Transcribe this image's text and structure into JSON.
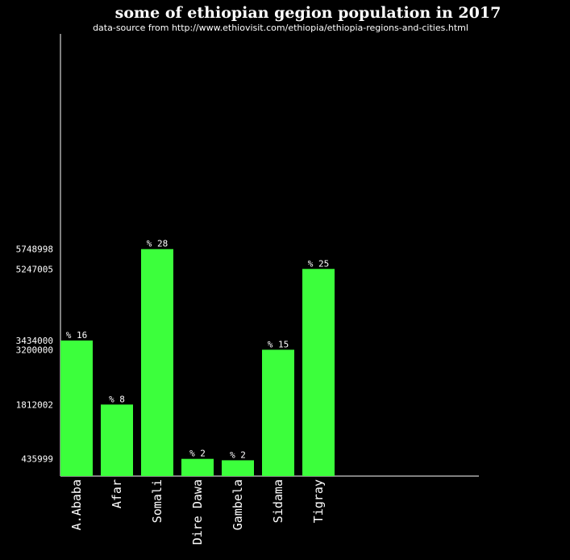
{
  "colors": {
    "background": "#000000",
    "bar": "#3cff3c",
    "text": "#ffffff",
    "axis": "#ffffff"
  },
  "chart_data": {
    "type": "bar",
    "title": "some of ethiopian gegion population in 2017",
    "subtitle": "data-source from http://www.ethiovisit.com/ethiopia/ethiopia-regions-and-cities.html",
    "xlabel": "",
    "ylabel": "",
    "grid": false,
    "legend": "none",
    "ylim": [
      0,
      11200000
    ],
    "categories": [
      "A.Ababa",
      "Afar",
      "Somali",
      "Dire Dawa",
      "Gambela",
      "Sidama",
      "Tigray"
    ],
    "values": [
      3434000,
      1812002,
      5748998,
      435999,
      400000,
      3200000,
      5247005
    ],
    "percent_labels": [
      "% 16",
      "% 8",
      "% 28",
      "% 2",
      "% 2",
      "% 15",
      "% 25"
    ],
    "ytick_labels": [
      "5748998",
      "5247005",
      "3434000",
      "3200000",
      "1812002",
      "435999"
    ],
    "ytick_values": [
      5748998,
      5247005,
      3434000,
      3200000,
      1812002,
      435999
    ]
  }
}
